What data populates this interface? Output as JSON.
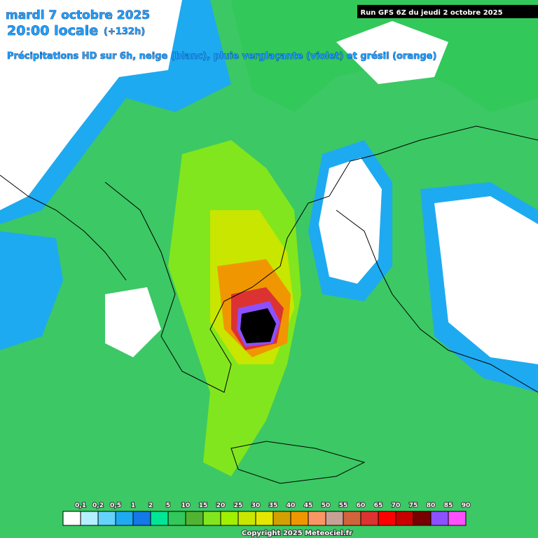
{
  "header": {
    "date": "mardi 7 octobre 2025",
    "time": "20:00 locale",
    "lead": "(+132h)",
    "subtitle": "Précipitations HD sur 6h, neige (blanc), pluie verglaçante (violet) et grésil (orange)",
    "run": "Run GFS 6Z du jeudi 2 octobre 2025"
  },
  "legend": [
    {
      "label": "0,1",
      "color": "#ffffff"
    },
    {
      "label": "0,2",
      "color": "#b4f0ff"
    },
    {
      "label": "0,5",
      "color": "#64d2fa"
    },
    {
      "label": "1",
      "color": "#1eaaf0"
    },
    {
      "label": "2",
      "color": "#1478e6"
    },
    {
      "label": "5",
      "color": "#00e696"
    },
    {
      "label": "10",
      "color": "#32c85a"
    },
    {
      "label": "15",
      "color": "#50b432"
    },
    {
      "label": "20",
      "color": "#82e61e"
    },
    {
      "label": "25",
      "color": "#a0f000"
    },
    {
      "label": "30",
      "color": "#c8e600"
    },
    {
      "label": "35",
      "color": "#e6e600"
    },
    {
      "label": "40",
      "color": "#d2a000"
    },
    {
      "label": "45",
      "color": "#f09600"
    },
    {
      "label": "50",
      "color": "#fa9664"
    },
    {
      "label": "55",
      "color": "#c8a096"
    },
    {
      "label": "60",
      "color": "#d2643c"
    },
    {
      "label": "65",
      "color": "#dc3232"
    },
    {
      "label": "70",
      "color": "#ff0000"
    },
    {
      "label": "75",
      "color": "#c80000"
    },
    {
      "label": "80",
      "color": "#780000"
    },
    {
      "label": "85",
      "color": "#8c50ff"
    },
    {
      "label": "90",
      "color": "#ff50ff"
    }
  ],
  "footer": {
    "copyright": "Copyright 2025 Meteociel.fr"
  }
}
